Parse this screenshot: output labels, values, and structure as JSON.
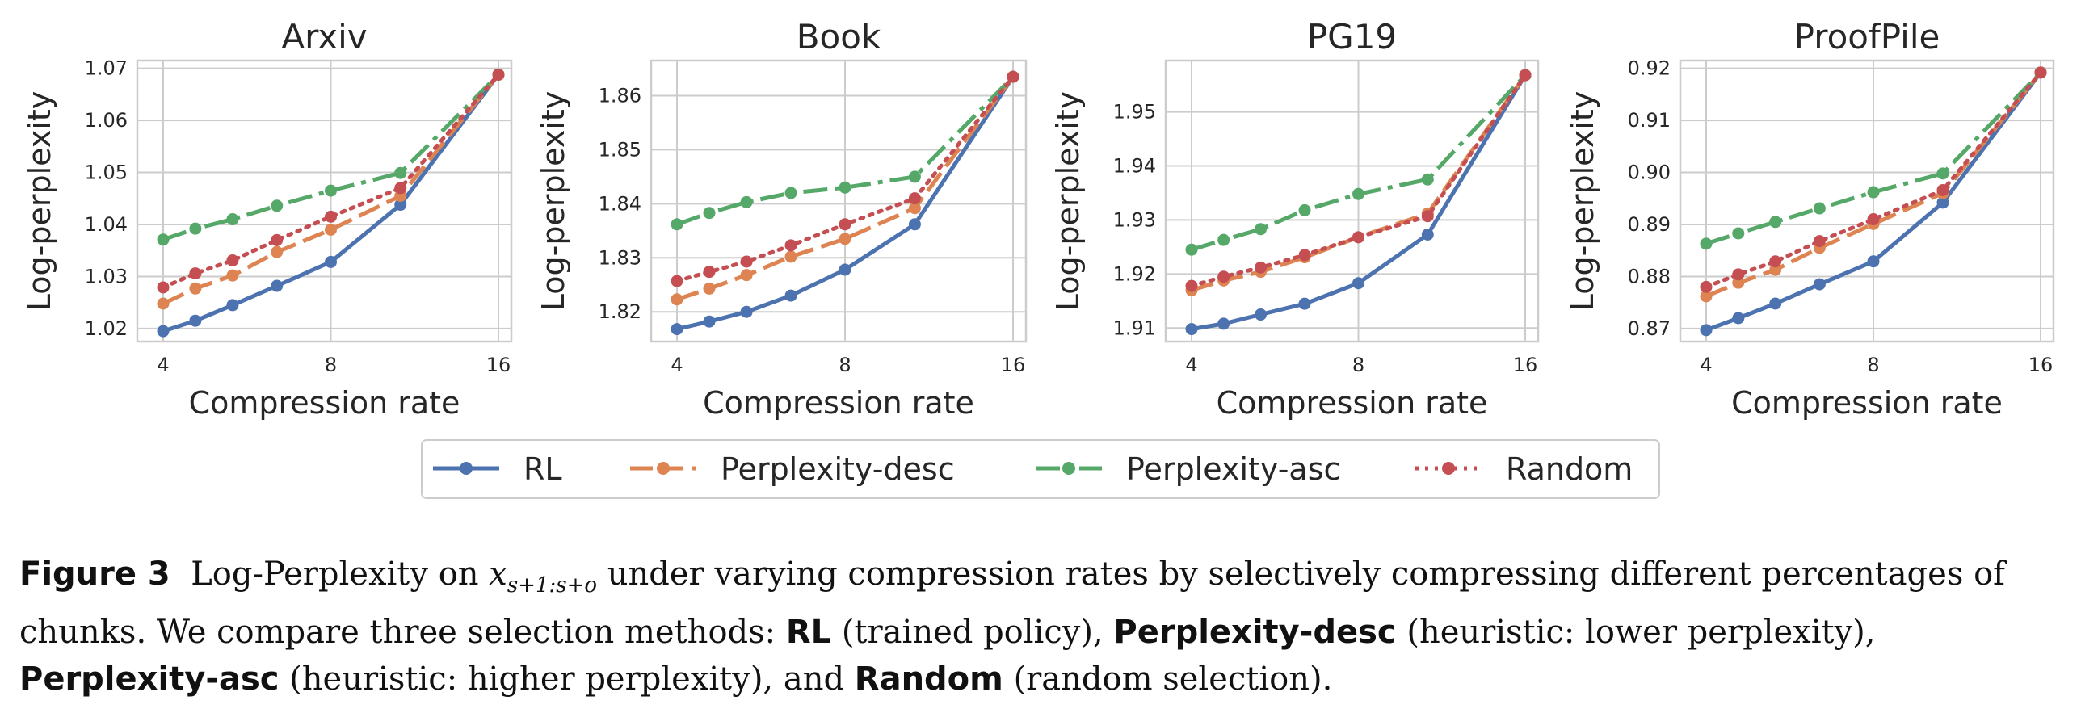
{
  "chart_data": [
    {
      "type": "line",
      "title": "Arxiv",
      "xlabel": "Compression rate",
      "ylabel": "Log-perplexity",
      "xscale": "log2",
      "xlim": [
        4,
        16
      ],
      "xticks": [
        "4",
        "8",
        "16"
      ],
      "ylim": [
        1.0175,
        1.0715
      ],
      "yticks": [
        "1.02",
        "1.03",
        "1.04",
        "1.05",
        "1.06",
        "1.07"
      ],
      "grid": true,
      "x": [
        4,
        4.57,
        5.33,
        6.4,
        8,
        10.67,
        16
      ],
      "series": [
        {
          "name": "RL",
          "values": [
            1.0195,
            1.0215,
            1.0245,
            1.0282,
            1.0328,
            1.0438,
            1.0688
          ]
        },
        {
          "name": "Perplexity-desc",
          "values": [
            1.0248,
            1.0277,
            1.0302,
            1.0347,
            1.039,
            1.0455,
            1.0688
          ]
        },
        {
          "name": "Perplexity-asc",
          "values": [
            1.0371,
            1.0392,
            1.041,
            1.0436,
            1.0465,
            1.0499,
            1.0688
          ]
        },
        {
          "name": "Random",
          "values": [
            1.0279,
            1.0306,
            1.0331,
            1.037,
            1.0415,
            1.047,
            1.0688
          ]
        }
      ]
    },
    {
      "type": "line",
      "title": "Book",
      "xlabel": "Compression rate",
      "ylabel": "Log-perplexity",
      "xscale": "log2",
      "xlim": [
        4,
        16
      ],
      "xticks": [
        "4",
        "8",
        "16"
      ],
      "ylim": [
        1.8145,
        1.8665
      ],
      "yticks": [
        "1.82",
        "1.83",
        "1.84",
        "1.85",
        "1.86"
      ],
      "grid": true,
      "x": [
        4,
        4.57,
        5.33,
        6.4,
        8,
        10.67,
        16
      ],
      "series": [
        {
          "name": "RL",
          "values": [
            1.8168,
            1.8182,
            1.82,
            1.823,
            1.8278,
            1.8362,
            1.8635
          ]
        },
        {
          "name": "Perplexity-desc",
          "values": [
            1.8223,
            1.8243,
            1.8268,
            1.8302,
            1.8335,
            1.8392,
            1.8635
          ]
        },
        {
          "name": "Perplexity-asc",
          "values": [
            1.8362,
            1.8383,
            1.8403,
            1.842,
            1.843,
            1.845,
            1.8635
          ]
        },
        {
          "name": "Random",
          "values": [
            1.8257,
            1.8274,
            1.8293,
            1.8323,
            1.8362,
            1.841,
            1.8635
          ]
        }
      ]
    },
    {
      "type": "line",
      "title": "PG19",
      "xlabel": "Compression rate",
      "ylabel": "Log-perplexity",
      "xscale": "log2",
      "xlim": [
        4,
        16
      ],
      "xticks": [
        "4",
        "8",
        "16"
      ],
      "ylim": [
        1.9075,
        1.9595
      ],
      "yticks": [
        "1.91",
        "1.92",
        "1.93",
        "1.94",
        "1.95"
      ],
      "grid": true,
      "x": [
        4,
        4.57,
        5.33,
        6.4,
        8,
        10.67,
        16
      ],
      "series": [
        {
          "name": "RL",
          "values": [
            1.9098,
            1.9108,
            1.9125,
            1.9145,
            1.9183,
            1.9273,
            1.9568
          ]
        },
        {
          "name": "Perplexity-desc",
          "values": [
            1.917,
            1.9188,
            1.9204,
            1.9231,
            1.9268,
            1.9312,
            1.9568
          ]
        },
        {
          "name": "Perplexity-asc",
          "values": [
            1.9245,
            1.9263,
            1.9283,
            1.9318,
            1.9348,
            1.9375,
            1.9568
          ]
        },
        {
          "name": "Random",
          "values": [
            1.9178,
            1.9195,
            1.9212,
            1.9235,
            1.9268,
            1.9307,
            1.9568
          ]
        }
      ]
    },
    {
      "type": "line",
      "title": "ProofPile",
      "xlabel": "Compression rate",
      "ylabel": "Log-perplexity",
      "xscale": "log2",
      "xlim": [
        4,
        16
      ],
      "xticks": [
        "4",
        "8",
        "16"
      ],
      "ylim": [
        0.8675,
        0.9215
      ],
      "yticks": [
        "0.87",
        "0.88",
        "0.89",
        "0.90",
        "0.91",
        "0.92"
      ],
      "grid": true,
      "x": [
        4,
        4.57,
        5.33,
        6.4,
        8,
        10.67,
        16
      ],
      "series": [
        {
          "name": "RL",
          "values": [
            0.8697,
            0.872,
            0.8748,
            0.8785,
            0.8829,
            0.8942,
            0.9192
          ]
        },
        {
          "name": "Perplexity-desc",
          "values": [
            0.8762,
            0.8788,
            0.8813,
            0.8855,
            0.8901,
            0.896,
            0.9192
          ]
        },
        {
          "name": "Perplexity-asc",
          "values": [
            0.8863,
            0.8883,
            0.8905,
            0.8931,
            0.8962,
            0.8998,
            0.9192
          ]
        },
        {
          "name": "Random",
          "values": [
            0.878,
            0.8804,
            0.8829,
            0.8868,
            0.891,
            0.8966,
            0.9192
          ]
        }
      ]
    }
  ],
  "legend": {
    "placement": "bottom-center",
    "entries": [
      "RL",
      "Perplexity-desc",
      "Perplexity-asc",
      "Random"
    ]
  },
  "colors": {
    "RL": "#4c72b0",
    "Perplexity-desc": "#dd8452",
    "Perplexity-asc": "#55a868",
    "Random": "#c44e52"
  },
  "caption": {
    "label": "Figure 3",
    "text_1": "Log-Perplexity on",
    "math_var": "x",
    "math_sub": "s+1:s+o",
    "text_2": "under varying compression rates by selectively compressing different percentages of chunks. We compare three selection methods:",
    "m1": "RL",
    "d1": "(trained policy),",
    "m2": "Perplexity-desc",
    "d2": "(heuristic: lower perplexity),",
    "m3": "Perplexity-asc",
    "d3": "(heuristic: higher perplexity), and",
    "m4": "Random",
    "d4": "(random selection)."
  }
}
